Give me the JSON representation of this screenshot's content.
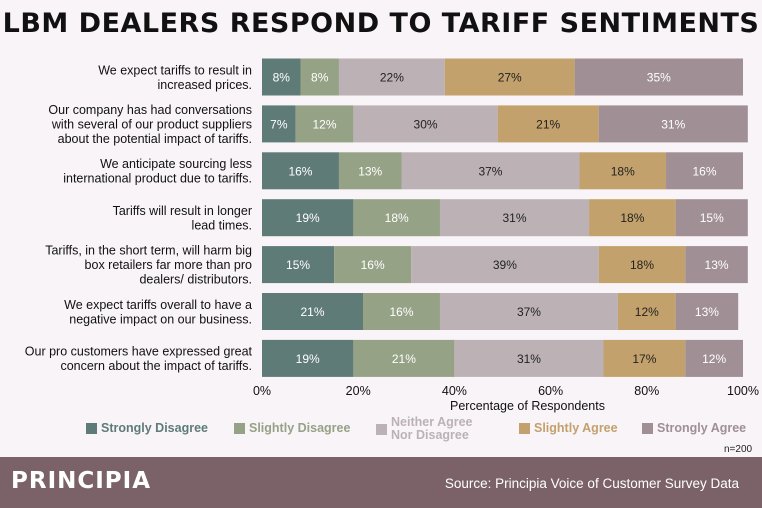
{
  "title": "LBM DEALERS RESPOND TO TARIFF SENTIMENTS",
  "colors": {
    "background": "#f8f4f8",
    "strongly_disagree": "#5f7b78",
    "slightly_disagree": "#96a286",
    "neither": "#bcb2b5",
    "slightly_agree": "#c3a16c",
    "strongly_agree": "#a08f95",
    "footer": "#7a6268"
  },
  "chart_data": {
    "type": "bar",
    "orientation": "horizontal",
    "stacked": true,
    "categories": [
      [
        "We expect tariffs to result in",
        "increased prices."
      ],
      [
        "Our company has had conversations",
        "with several of our product suppliers",
        "about the potential impact of tariffs."
      ],
      [
        "We anticipate sourcing less",
        "international product due to tariffs."
      ],
      [
        "Tariffs will result in longer",
        "lead times."
      ],
      [
        "Tariffs, in the short term, will harm big",
        "box retailers far more than pro",
        "dealers/ distributors."
      ],
      [
        "We expect tariffs overall to have a",
        "negative impact on our business."
      ],
      [
        "Our pro customers have expressed great",
        "concern about the impact of tariffs."
      ]
    ],
    "series": [
      {
        "name": "Strongly Disagree",
        "color": "#5f7b78",
        "text_color": "#ffffff",
        "values": [
          8,
          7,
          16,
          19,
          15,
          21,
          19
        ]
      },
      {
        "name": "Slightly Disagree",
        "color": "#96a286",
        "text_color": "#ffffff",
        "values": [
          8,
          12,
          13,
          18,
          16,
          16,
          21
        ]
      },
      {
        "name": "Neither Agree Nor Disagree",
        "legend_lines": [
          "Neither Agree",
          "Nor Disagree"
        ],
        "color": "#bcb2b5",
        "text_color": "#222222",
        "values": [
          22,
          30,
          37,
          31,
          39,
          37,
          31
        ]
      },
      {
        "name": "Slightly Agree",
        "color": "#c3a16c",
        "text_color": "#222222",
        "values": [
          27,
          21,
          18,
          18,
          18,
          12,
          17
        ]
      },
      {
        "name": "Strongly Agree",
        "color": "#a08f95",
        "text_color": "#ffffff",
        "values": [
          35,
          31,
          16,
          15,
          13,
          13,
          12
        ]
      }
    ],
    "xlabel": "Percentage of Respondents",
    "xlim": [
      0,
      100
    ],
    "xticks": [
      "0%",
      "20%",
      "40%",
      "60%",
      "80%",
      "100%"
    ],
    "legend_position": "bottom"
  },
  "n_label": "n=200",
  "footer": {
    "brand": "PRINCIPIA",
    "source": "Source: Principia Voice of Customer Survey Data"
  }
}
